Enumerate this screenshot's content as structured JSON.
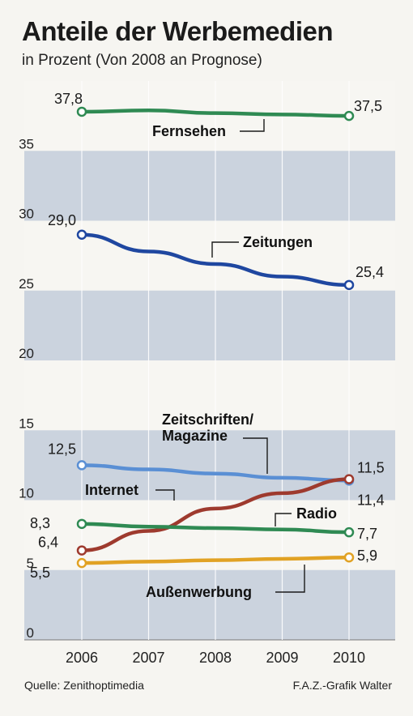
{
  "chart_data": {
    "type": "line",
    "title": "Anteile der Werbemedien",
    "subtitle": "in Prozent (Von 2008 an Prognose)",
    "x": [
      2006,
      2007,
      2008,
      2009,
      2010
    ],
    "xlim": [
      2006,
      2010
    ],
    "ylim": [
      0,
      40
    ],
    "yticks": [
      0,
      5,
      10,
      15,
      20,
      25,
      30,
      35
    ],
    "grid": "horizontal bands",
    "series": [
      {
        "name": "Fernsehen",
        "color": "#2f8a53",
        "values": [
          37.8,
          37.9,
          37.7,
          37.6,
          37.5
        ],
        "start_label": "37,8",
        "end_label": "37,5"
      },
      {
        "name": "Zeitungen",
        "color": "#1f47a0",
        "values": [
          29.0,
          27.8,
          26.9,
          26.0,
          25.4
        ],
        "start_label": "29,0",
        "end_label": "25,4"
      },
      {
        "name": "Zeitschriften/\nMagazine",
        "name_lines": [
          "Zeitschriften/",
          "Magazine"
        ],
        "color": "#5a8fd4",
        "values": [
          12.5,
          12.2,
          11.9,
          11.6,
          11.4
        ],
        "start_label": "12,5",
        "end_label": "11,4"
      },
      {
        "name": "Internet",
        "color": "#9e3a2e",
        "values": [
          6.4,
          7.8,
          9.4,
          10.5,
          11.5
        ],
        "start_label": "6,4",
        "end_label": "11,5"
      },
      {
        "name": "Radio",
        "color": "#2f8a53",
        "values": [
          8.3,
          8.1,
          8.0,
          7.9,
          7.7
        ],
        "start_label": "8,3",
        "end_label": "7,7"
      },
      {
        "name": "Außenwerbung",
        "color": "#e1a224",
        "values": [
          5.5,
          5.6,
          5.7,
          5.8,
          5.9
        ],
        "start_label": "5,5",
        "end_label": "5,9"
      }
    ]
  },
  "footer": {
    "source": "Quelle: Zenithoptimedia",
    "credit": "F.A.Z.-Grafik Walter"
  }
}
